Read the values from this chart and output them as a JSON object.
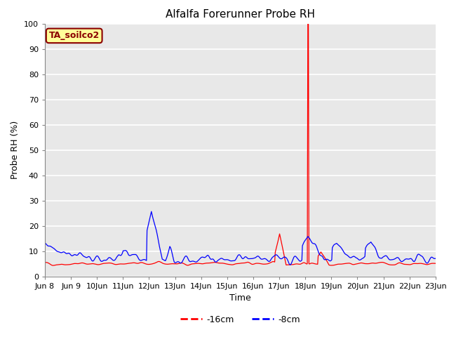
{
  "title": "Alfalfa Forerunner Probe RH",
  "ylabel": "Probe RH (%)",
  "xlabel": "Time",
  "annotation": "TA_soilco2",
  "annotation_color": "#8B0000",
  "annotation_bg": "#FFFF99",
  "ylim": [
    0,
    100
  ],
  "legend_labels": [
    "-16cm",
    "-8cm"
  ],
  "line_colors": [
    "red",
    "blue"
  ],
  "fig_bg_color": "#FFFFFF",
  "plot_bg": "#E8E8E8",
  "grid_color": "#FFFFFF",
  "start_day": 8,
  "end_day": 23,
  "yticks": [
    0,
    10,
    20,
    30,
    40,
    50,
    60,
    70,
    80,
    90,
    100
  ],
  "title_fontsize": 11,
  "axis_label_fontsize": 9,
  "tick_fontsize": 8,
  "annotation_fontsize": 9,
  "legend_fontsize": 9
}
